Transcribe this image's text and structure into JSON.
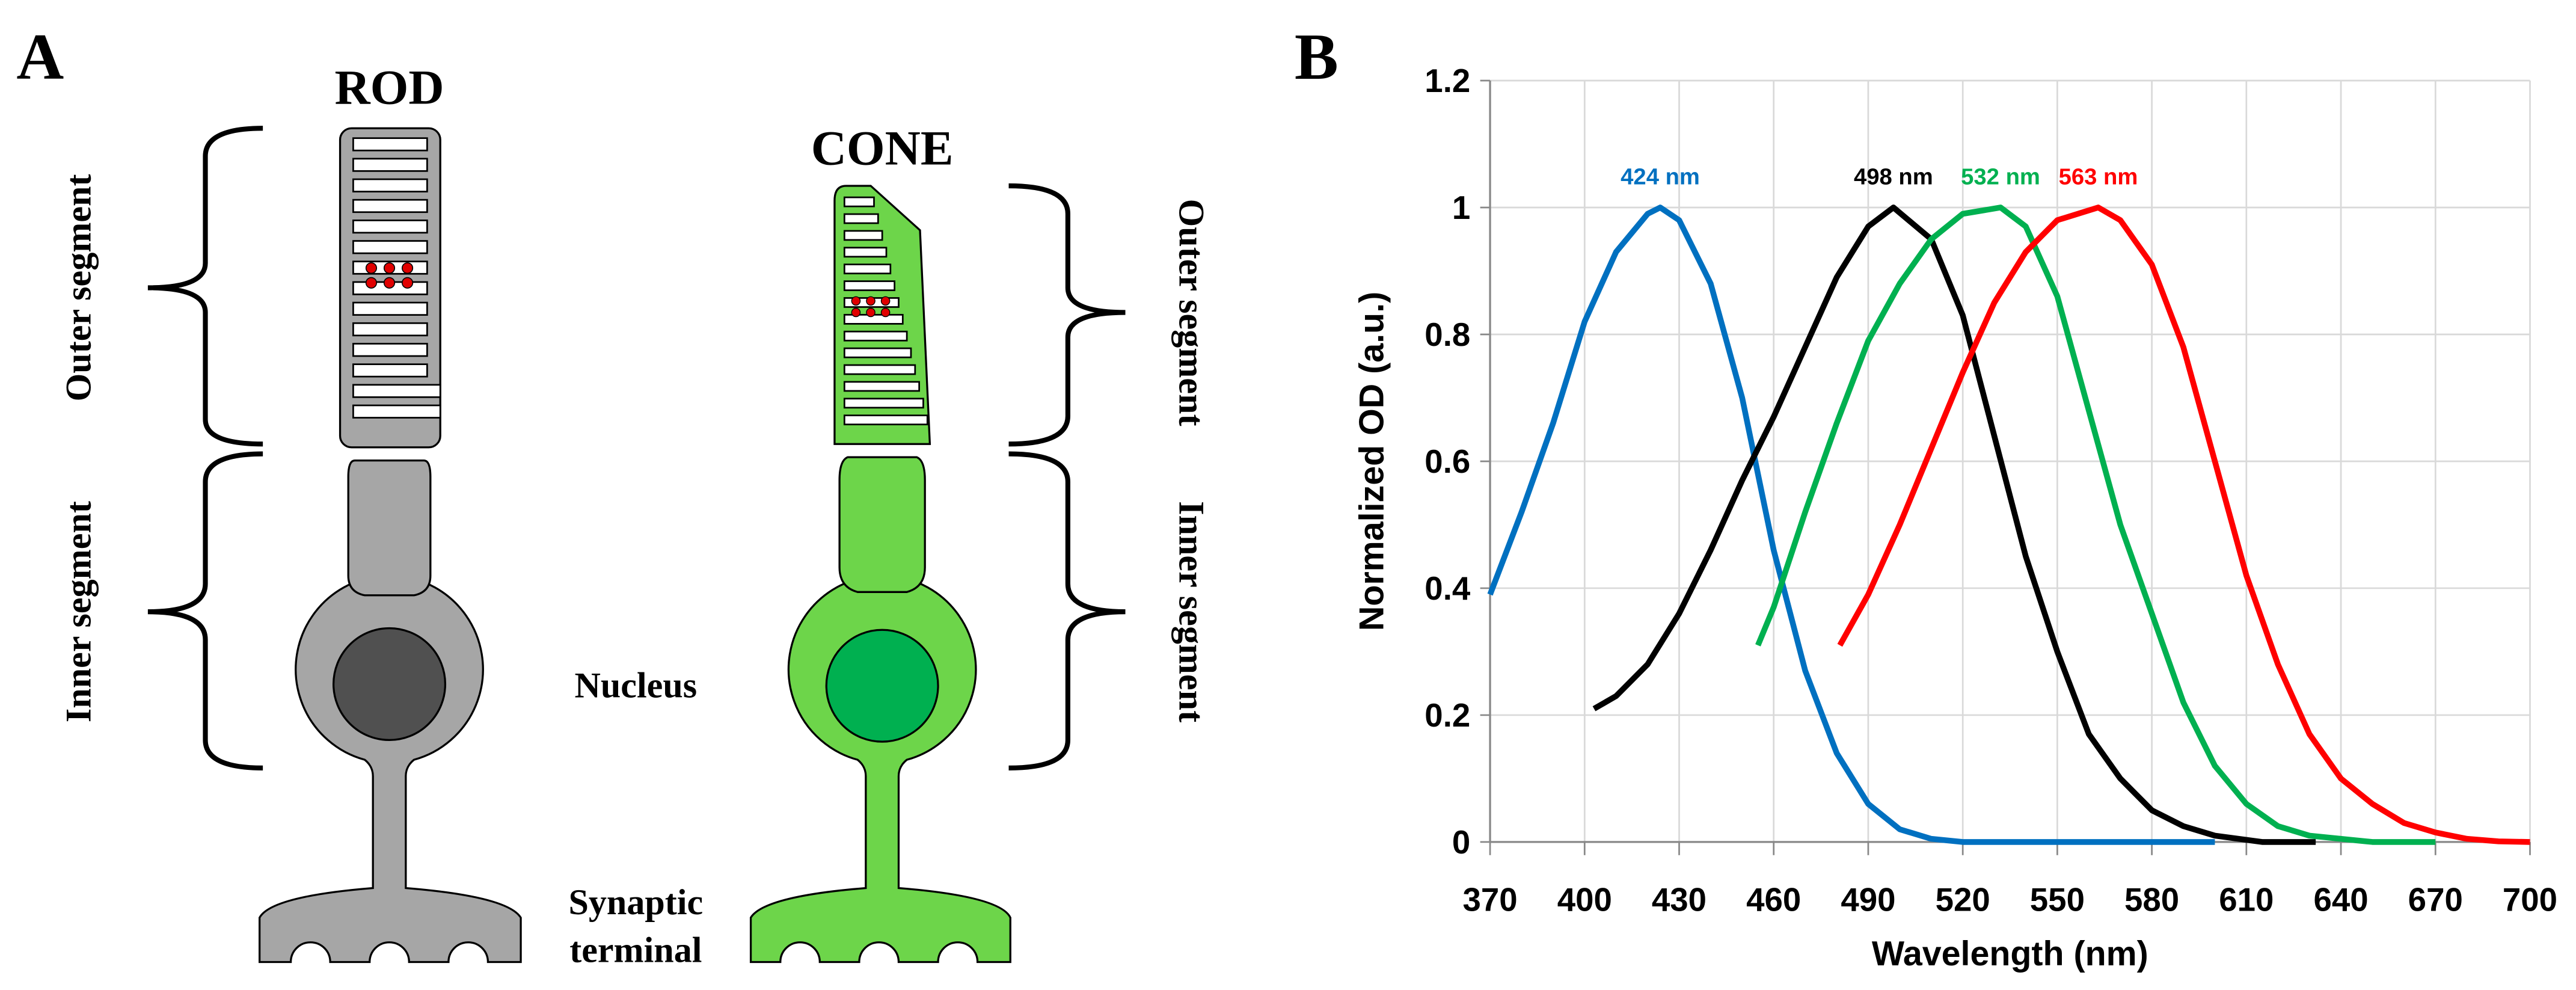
{
  "diagram": {
    "panel_label": "A",
    "rod": {
      "title": "ROD",
      "outer_label": "Outer segment",
      "inner_label": "Inner segment"
    },
    "cone": {
      "title": "CONE",
      "outer_label": "Outer segment",
      "inner_label": "Inner segment"
    },
    "nucleus_label": "Nucleus",
    "terminal_label": [
      "Synaptic",
      "terminal"
    ]
  },
  "chart_data": {
    "type": "line",
    "panel_label": "B",
    "x_label": "Wavelength (nm)",
    "y_label": "Normalized OD (a.u.)",
    "xlim": [
      370,
      700
    ],
    "xticks": [
      370,
      400,
      430,
      460,
      490,
      520,
      550,
      580,
      610,
      640,
      670,
      700
    ],
    "ylim": [
      0,
      1.2
    ],
    "yticks": [
      0,
      0.2,
      0.4,
      0.6,
      0.8,
      1,
      1.2
    ],
    "grid": true,
    "series": [
      {
        "name": "424 nm",
        "color": "#0070c0",
        "x": [
          370,
          380,
          390,
          400,
          410,
          420,
          424,
          430,
          440,
          450,
          460,
          470,
          480,
          490,
          500,
          510,
          520,
          560,
          600
        ],
        "values": [
          0.39,
          0.52,
          0.66,
          0.82,
          0.93,
          0.99,
          1,
          0.98,
          0.88,
          0.7,
          0.46,
          0.27,
          0.14,
          0.06,
          0.02,
          0.005,
          0,
          0,
          0
        ]
      },
      {
        "name": "498 nm",
        "color": "#000000",
        "x": [
          403,
          410,
          420,
          430,
          440,
          450,
          460,
          470,
          480,
          490,
          498,
          510,
          520,
          530,
          540,
          550,
          560,
          570,
          580,
          590,
          600,
          615,
          632
        ],
        "values": [
          0.21,
          0.23,
          0.28,
          0.36,
          0.46,
          0.57,
          0.67,
          0.78,
          0.89,
          0.97,
          1,
          0.95,
          0.83,
          0.64,
          0.45,
          0.3,
          0.17,
          0.1,
          0.05,
          0.025,
          0.01,
          0,
          0
        ]
      },
      {
        "name": "532 nm",
        "color": "#00b050",
        "x": [
          455,
          460,
          470,
          480,
          490,
          500,
          510,
          520,
          532,
          540,
          550,
          560,
          570,
          580,
          590,
          600,
          610,
          620,
          630,
          650,
          670
        ],
        "values": [
          0.31,
          0.37,
          0.52,
          0.66,
          0.79,
          0.88,
          0.95,
          0.99,
          1,
          0.97,
          0.86,
          0.68,
          0.5,
          0.36,
          0.22,
          0.12,
          0.06,
          0.025,
          0.01,
          0,
          0
        ]
      },
      {
        "name": "563 nm",
        "color": "#ff0000",
        "x": [
          481,
          490,
          500,
          510,
          520,
          530,
          540,
          550,
          563,
          570,
          580,
          590,
          600,
          610,
          620,
          630,
          640,
          650,
          660,
          670,
          680,
          690,
          700
        ],
        "values": [
          0.31,
          0.39,
          0.5,
          0.62,
          0.74,
          0.85,
          0.93,
          0.98,
          1,
          0.98,
          0.91,
          0.78,
          0.6,
          0.42,
          0.28,
          0.17,
          0.1,
          0.06,
          0.03,
          0.015,
          0.005,
          0.001,
          0
        ]
      }
    ]
  }
}
